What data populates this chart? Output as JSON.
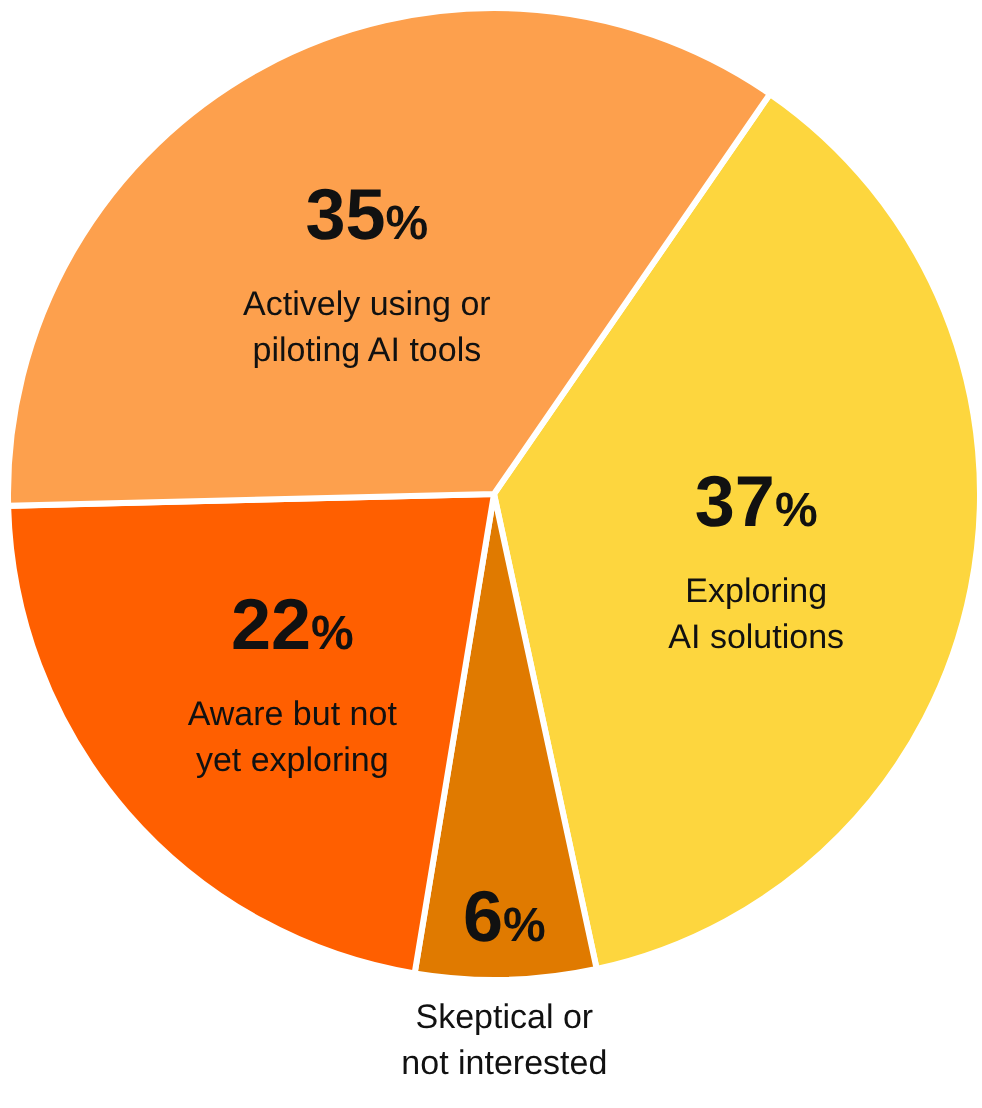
{
  "chart_data": {
    "type": "pie",
    "categories": [
      "Exploring\nAI solutions",
      "Skeptical or\nnot interested",
      "Aware but not\nyet exploring",
      "Actively using or\npiloting AI tools"
    ],
    "values": [
      37,
      6,
      22,
      35
    ],
    "value_labels": [
      "37%",
      "6%",
      "22%",
      "35%"
    ],
    "colors": [
      "#fdd63e",
      "#e07a00",
      "#ff5f00",
      "#fda04d"
    ]
  }
}
